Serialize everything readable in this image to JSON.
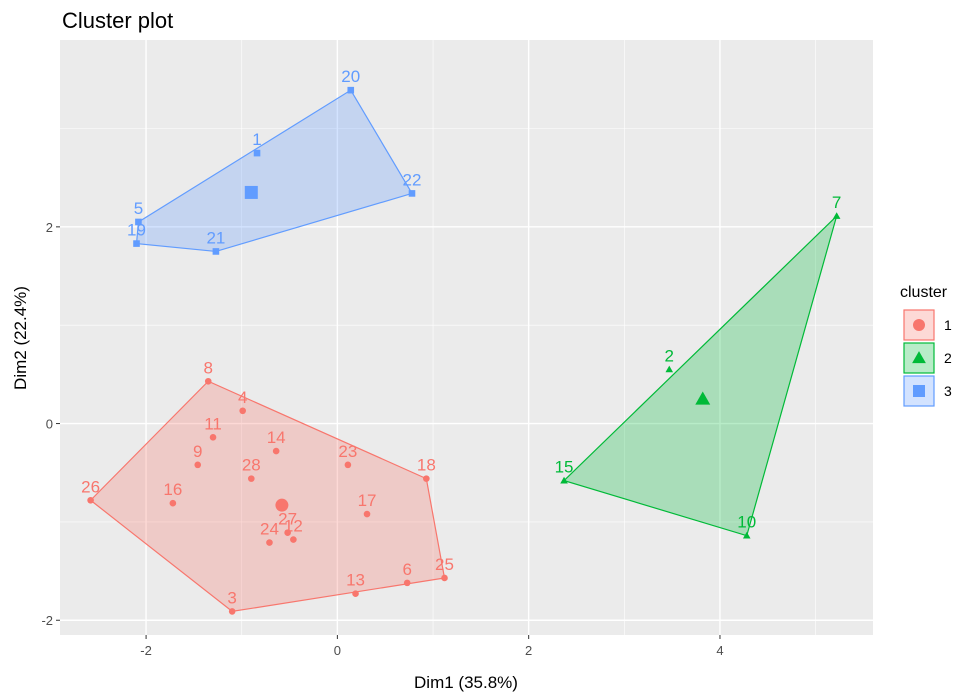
{
  "chart_data": {
    "type": "scatter",
    "title": "Cluster plot",
    "xlabel": "Dim1 (35.8%)",
    "ylabel": "Dim2 (22.4%)",
    "xlim": [
      -2.9,
      5.6
    ],
    "ylim": [
      -2.15,
      3.9
    ],
    "x_ticks": [
      -2,
      0,
      2,
      4
    ],
    "y_ticks": [
      -2,
      0,
      2
    ],
    "tick_labels_x": [
      "-2",
      "0",
      "2",
      "4"
    ],
    "tick_labels_y": [
      "-2",
      "0",
      "2"
    ],
    "grid": true,
    "legend": {
      "title": "cluster",
      "placement": "right",
      "entries": [
        "1",
        "2",
        "3"
      ]
    },
    "series": [
      {
        "name": "1",
        "color": "#F8766D",
        "shape": "circle",
        "center": [
          -0.58,
          -0.83
        ],
        "hull": [
          "26",
          "8",
          "18",
          "25",
          "3"
        ],
        "points": [
          {
            "label": "8",
            "x": -1.35,
            "y": 0.43
          },
          {
            "label": "4",
            "x": -0.99,
            "y": 0.13
          },
          {
            "label": "11",
            "x": -1.3,
            "y": -0.14
          },
          {
            "label": "9",
            "x": -1.46,
            "y": -0.42
          },
          {
            "label": "14",
            "x": -0.64,
            "y": -0.28
          },
          {
            "label": "28",
            "x": -0.9,
            "y": -0.56
          },
          {
            "label": "23",
            "x": 0.11,
            "y": -0.42
          },
          {
            "label": "18",
            "x": 0.93,
            "y": -0.56
          },
          {
            "label": "26",
            "x": -2.58,
            "y": -0.78
          },
          {
            "label": "16",
            "x": -1.72,
            "y": -0.81
          },
          {
            "label": "17",
            "x": 0.31,
            "y": -0.92
          },
          {
            "label": "24",
            "x": -0.71,
            "y": -1.21
          },
          {
            "label": "27",
            "x": -0.52,
            "y": -1.11
          },
          {
            "label": "12",
            "x": -0.46,
            "y": -1.18
          },
          {
            "label": "6",
            "x": 0.73,
            "y": -1.62
          },
          {
            "label": "25",
            "x": 1.12,
            "y": -1.57
          },
          {
            "label": "13",
            "x": 0.19,
            "y": -1.73
          },
          {
            "label": "3",
            "x": -1.1,
            "y": -1.91
          }
        ]
      },
      {
        "name": "2",
        "color": "#00BA38",
        "shape": "triangle",
        "center": [
          3.82,
          0.25
        ],
        "hull": [
          "7",
          "15",
          "10"
        ],
        "points": [
          {
            "label": "7",
            "x": 5.22,
            "y": 2.11
          },
          {
            "label": "2",
            "x": 3.47,
            "y": 0.55
          },
          {
            "label": "15",
            "x": 2.37,
            "y": -0.58
          },
          {
            "label": "10",
            "x": 4.28,
            "y": -1.14
          }
        ]
      },
      {
        "name": "3",
        "color": "#619CFF",
        "shape": "square",
        "center": [
          -0.9,
          2.35
        ],
        "hull": [
          "20",
          "22",
          "21",
          "19",
          "5"
        ],
        "points": [
          {
            "label": "20",
            "x": 0.14,
            "y": 3.39
          },
          {
            "label": "1",
            "x": -0.84,
            "y": 2.75
          },
          {
            "label": "22",
            "x": 0.78,
            "y": 2.34
          },
          {
            "label": "5",
            "x": -2.08,
            "y": 2.05
          },
          {
            "label": "19",
            "x": -2.1,
            "y": 1.83
          },
          {
            "label": "21",
            "x": -1.27,
            "y": 1.75
          }
        ]
      }
    ]
  }
}
